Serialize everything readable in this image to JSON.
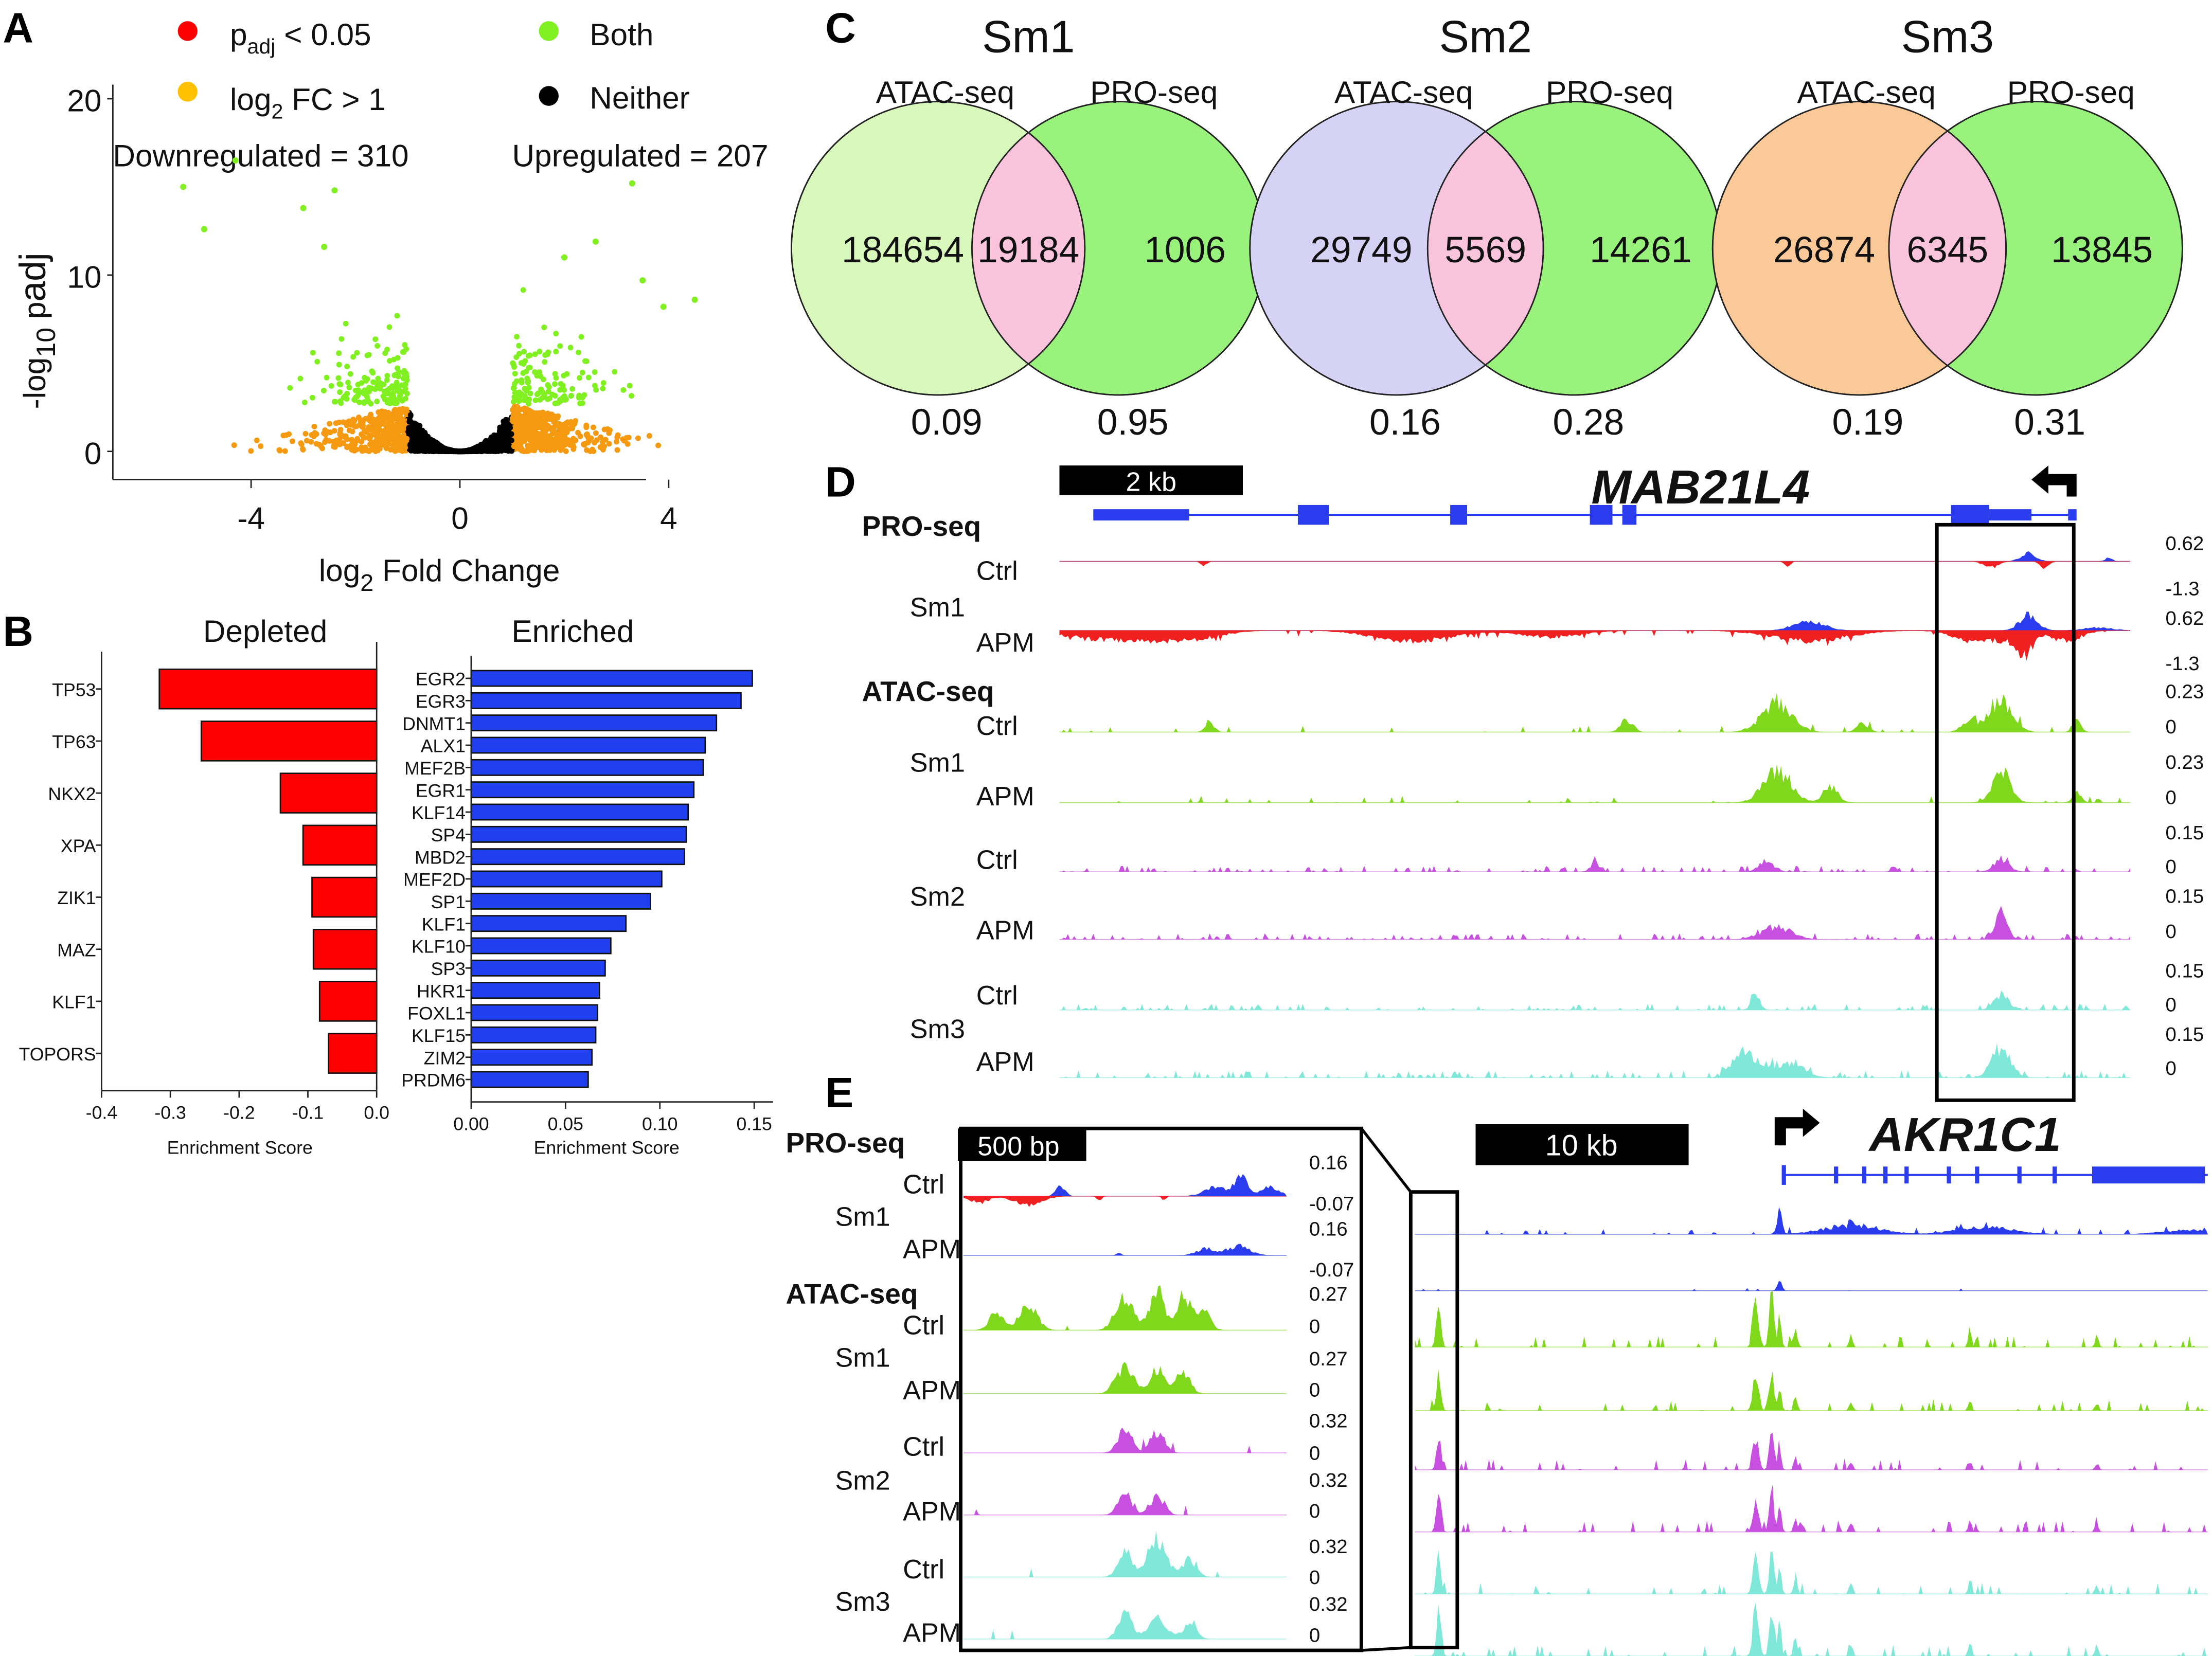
{
  "panel_labels": {
    "a": "A",
    "b": "B",
    "c": "C",
    "d": "D",
    "e": "E"
  },
  "chart_data": [
    {
      "type": "scatter",
      "title": "",
      "legend": [
        {
          "label_parts": [
            "p",
            "adj",
            " < 0.05"
          ],
          "color": "#ff0000"
        },
        {
          "label_parts": [
            "log",
            "2",
            " FC > 1"
          ],
          "color": "#ffc000"
        },
        {
          "label_parts": [
            "Both"
          ],
          "color": "#80f020"
        },
        {
          "label_parts": [
            "Neither"
          ],
          "color": "#000000"
        }
      ],
      "annotations": {
        "down": "Downregulated = 310",
        "up": "Upregulated = 207"
      },
      "counts": {
        "downregulated": 310,
        "upregulated": 207
      },
      "thresholds": {
        "padj": 0.05,
        "log2fc": 1
      },
      "xlabel_parts": [
        "log",
        "2",
        " Fold Change"
      ],
      "ylabel_parts": [
        "-log",
        "10",
        " p",
        "adj"
      ],
      "xticks": [
        "-4",
        "0",
        "4"
      ],
      "yticks": [
        "0",
        "10",
        "20"
      ],
      "xlim": [
        -6,
        5
      ],
      "ylim": [
        -0.5,
        21
      ]
    },
    {
      "type": "bar",
      "orientation": "horizontal",
      "title": "Depleted",
      "categories": [
        "TP53",
        "TP63",
        "NKX2",
        "XPA",
        "ZIK1",
        "MAZ",
        "KLF1",
        "TOPORS"
      ],
      "values": [
        -0.316,
        -0.255,
        -0.14,
        -0.107,
        -0.094,
        -0.092,
        -0.083,
        -0.07
      ],
      "xlabel": "Enrichment  Score",
      "xticks": [
        "-0.4",
        "-0.3",
        "-0.2",
        "-0.1",
        "0.0"
      ],
      "xlim": [
        -0.4,
        0.0
      ],
      "color": "#ff0000"
    },
    {
      "type": "bar",
      "orientation": "horizontal",
      "title": "Enriched",
      "categories": [
        "EGR2",
        "EGR3",
        "DNMT1",
        "ALX1",
        "MEF2B",
        "EGR1",
        "KLF14",
        "SP4",
        "MBD2",
        "MEF2D",
        "SP1",
        "KLF1",
        "KLF10",
        "SP3",
        "HKR1",
        "FOXL1",
        "KLF15",
        "ZIM2",
        "PRDM6"
      ],
      "values": [
        0.149,
        0.143,
        0.13,
        0.124,
        0.123,
        0.118,
        0.115,
        0.114,
        0.113,
        0.101,
        0.095,
        0.082,
        0.074,
        0.071,
        0.068,
        0.067,
        0.066,
        0.064,
        0.062
      ],
      "xlabel": "Enrichment  Score",
      "xticks": [
        "0.00",
        "0.05",
        "0.10",
        "0.15"
      ],
      "xlim": [
        0,
        0.16
      ],
      "color": "#2040f0"
    }
  ],
  "venn": [
    {
      "title": "Sm1",
      "left_label": "ATAC-seq",
      "right_label": "PRO-seq",
      "left_only": "184654",
      "overlap": "19184",
      "right_only": "1006",
      "left_fraction": "0.09",
      "right_fraction": "0.95",
      "left_color": "#d8f8bc",
      "right_color": "#98f27c",
      "overlap_color": "#f9c4dc"
    },
    {
      "title": "Sm2",
      "left_label": "ATAC-seq",
      "right_label": "PRO-seq",
      "left_only": "29749",
      "overlap": "5569",
      "right_only": "14261",
      "left_fraction": "0.16",
      "right_fraction": "0.28",
      "left_color": "#d6d2f6",
      "right_color": "#98f27c",
      "overlap_color": "#f9c4dc"
    },
    {
      "title": "Sm3",
      "left_label": "ATAC-seq",
      "right_label": "PRO-seq",
      "left_only": "26874",
      "overlap": "6345",
      "right_only": "13845",
      "left_fraction": "0.19",
      "right_fraction": "0.31",
      "left_color": "#fbc998",
      "right_color": "#98f27c",
      "overlap_color": "#f9c4dc"
    }
  ],
  "panel_d": {
    "gene": "MAB21L4",
    "scale_bar": "2 kb",
    "pro_header": "PRO-seq",
    "atac_header": "ATAC-seq",
    "groups": [
      "Sm1",
      "Sm1",
      "Sm2",
      "Sm3"
    ],
    "tracks": [
      {
        "label": "Ctrl",
        "max": "0.62",
        "min": "-1.3"
      },
      {
        "label": "APM",
        "max": "0.62",
        "min": "-1.3"
      },
      {
        "label": "Ctrl",
        "max": "0.23",
        "min": "0"
      },
      {
        "label": "APM",
        "max": "0.23",
        "min": "0"
      },
      {
        "label": "Ctrl",
        "max": "0.15",
        "min": "0"
      },
      {
        "label": "APM",
        "max": "0.15",
        "min": "0"
      },
      {
        "label": "Ctrl",
        "max": "0.15",
        "min": "0"
      },
      {
        "label": "APM",
        "max": "0.15",
        "min": "0"
      }
    ]
  },
  "panel_e": {
    "gene": "AKR1C1",
    "scale_bar_inset": "500 bp",
    "scale_bar_main": "10 kb",
    "pro_header": "PRO-seq",
    "atac_header": "ATAC-seq",
    "groups": [
      "Sm1",
      "Sm1",
      "Sm2",
      "Sm3"
    ],
    "tracks": [
      {
        "label": "Ctrl",
        "max": "0.16",
        "min": "-0.07"
      },
      {
        "label": "APM",
        "max": "0.16",
        "min": "-0.07"
      },
      {
        "label": "Ctrl",
        "max": "0.27",
        "min": "0"
      },
      {
        "label": "APM",
        "max": "0.27",
        "min": "0"
      },
      {
        "label": "Ctrl",
        "max": "0.32",
        "min": "0"
      },
      {
        "label": "APM",
        "max": "0.32",
        "min": "0"
      },
      {
        "label": "Ctrl",
        "max": "0.32",
        "min": "0"
      },
      {
        "label": "APM",
        "max": "0.32",
        "min": "0"
      }
    ]
  },
  "colors": {
    "pro_plus": "#2b3cef",
    "pro_minus": "#f02020",
    "sm1": "#80d81c",
    "sm2": "#c850e0",
    "sm3": "#80e8d8"
  }
}
